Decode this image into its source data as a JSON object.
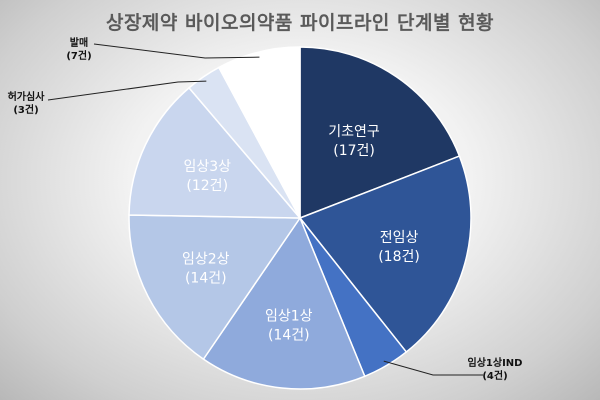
{
  "chart_data": {
    "type": "pie",
    "title": "상장제약 바이오의약품 파이프라인 단계별 현황",
    "unit": "건",
    "slices": [
      {
        "name": "기초연구",
        "value": 17,
        "color": "#1f3864",
        "text_color": "#ffffff",
        "label_line1": "기초연구",
        "label_line2": "(17건)",
        "inside": true
      },
      {
        "name": "전임상",
        "value": 18,
        "color": "#2f5597",
        "text_color": "#ffffff",
        "label_line1": "전임상",
        "label_line2": "(18건)",
        "inside": true
      },
      {
        "name": "임상1상IND",
        "value": 4,
        "color": "#4472c4",
        "text_color": "#111111",
        "label_line1": "임상1상IND",
        "label_line2": "(4건)",
        "inside": false
      },
      {
        "name": "임상1상",
        "value": 14,
        "color": "#8faadc",
        "text_color": "#ffffff",
        "label_line1": "임상1상",
        "label_line2": "(14건)",
        "inside": true
      },
      {
        "name": "임상2상",
        "value": 14,
        "color": "#b4c7e7",
        "text_color": "#ffffff",
        "label_line1": "임상2상",
        "label_line2": "(14건)",
        "inside": true
      },
      {
        "name": "임상3상",
        "value": 12,
        "color": "#c9d6ee",
        "text_color": "#ffffff",
        "label_line1": "임상3상",
        "label_line2": "(12건)",
        "inside": true
      },
      {
        "name": "허가심사",
        "value": 3,
        "color": "#dae3f3",
        "text_color": "#111111",
        "label_line1": "허가심사",
        "label_line2": "(3건)",
        "inside": false
      },
      {
        "name": "발매",
        "value": 7,
        "color": "#ffffff",
        "text_color": "#111111",
        "label_line1": "발매",
        "label_line2": "(7건)",
        "inside": false
      }
    ],
    "start_angle": "12 o'clock",
    "direction": "clockwise",
    "legend": "none"
  }
}
